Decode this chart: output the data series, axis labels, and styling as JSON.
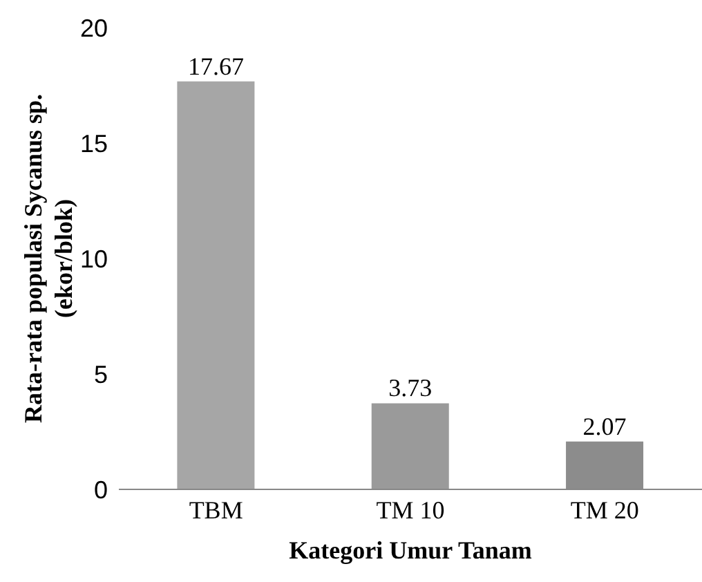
{
  "chart_data": {
    "type": "bar",
    "xlabel": "Kategori Umur Tanam",
    "ylabel": "Rata-rata populasi Sycanus sp. (ekor/blok)",
    "categories": [
      "TBM",
      "TM 10",
      "TM 20"
    ],
    "values": [
      17.67,
      3.73,
      2.07
    ],
    "colors": [
      "#a6a6a6",
      "#9a9a9a",
      "#8c8c8c"
    ],
    "ylim": [
      0,
      20
    ],
    "yticks": [
      0,
      5,
      10,
      15,
      20
    ],
    "grid": false,
    "data_labels": true
  }
}
